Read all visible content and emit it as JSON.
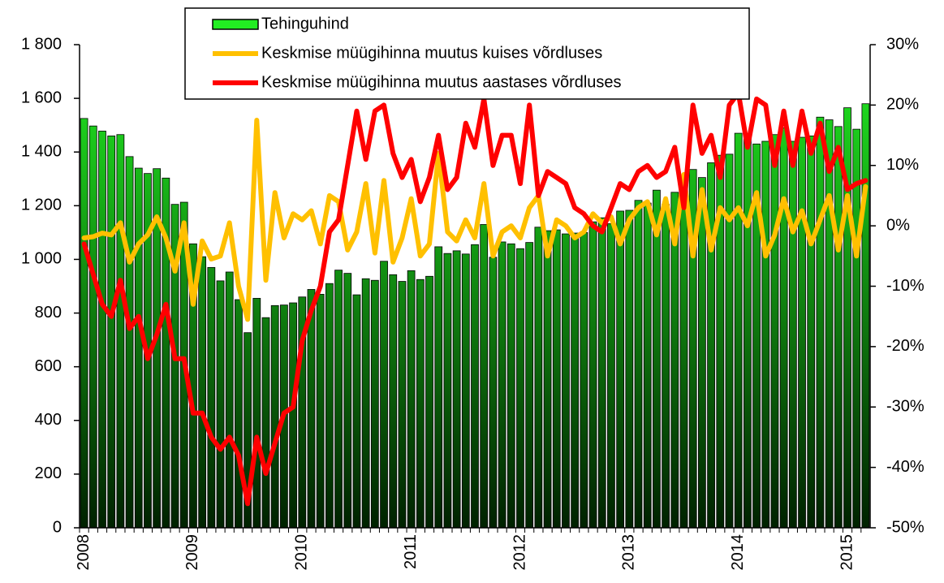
{
  "chart_data": {
    "type": "bar",
    "categories": [
      "2008",
      null,
      null,
      null,
      null,
      null,
      null,
      null,
      null,
      null,
      null,
      null,
      "2009",
      null,
      null,
      null,
      null,
      null,
      null,
      null,
      null,
      null,
      null,
      null,
      "2010",
      null,
      null,
      null,
      null,
      null,
      null,
      null,
      null,
      null,
      null,
      null,
      "2011",
      null,
      null,
      null,
      null,
      null,
      null,
      null,
      null,
      null,
      null,
      null,
      "2012",
      null,
      null,
      null,
      null,
      null,
      null,
      null,
      null,
      null,
      null,
      null,
      "2013",
      null,
      null,
      null,
      null,
      null,
      null,
      null,
      null,
      null,
      null,
      null,
      "2014",
      null,
      null,
      null,
      null,
      null,
      null,
      null,
      null,
      null,
      null,
      null,
      "2015",
      null,
      null
    ],
    "series": [
      {
        "name": "Tehinguhind",
        "type": "bar",
        "color": "#22ee22",
        "values": [
          1525,
          1497,
          1478,
          1460,
          1465,
          1383,
          1340,
          1320,
          1338,
          1303,
          1205,
          1213,
          1058,
          1010,
          970,
          920,
          953,
          850,
          727,
          855,
          783,
          828,
          830,
          838,
          860,
          888,
          870,
          910,
          960,
          948,
          868,
          928,
          922,
          993,
          943,
          918,
          958,
          925,
          937,
          1047,
          1022,
          1032,
          1020,
          1055,
          1130,
          1008,
          1065,
          1058,
          1040,
          1063,
          1120,
          1107,
          1110,
          1095,
          1098,
          1100,
          1140,
          1155,
          1133,
          1180,
          1183,
          1220,
          1210,
          1258,
          1205,
          1250,
          1260,
          1335,
          1305,
          1360,
          1388,
          1392,
          1470,
          1452,
          1430,
          1440,
          1465,
          1490,
          1440,
          1455,
          1460,
          1530,
          1520,
          1495,
          1565,
          1485,
          1580
        ]
      },
      {
        "name": "Keskmise müügihinna muutus kuises võrdluses",
        "type": "line",
        "axis": "y2",
        "color": "#ffc000",
        "values": [
          -2,
          -1.8,
          -1.2,
          -1.5,
          0.5,
          -6,
          -3,
          -1.5,
          1.5,
          -2,
          -7.5,
          0.5,
          -13,
          -2.5,
          -5.5,
          -5,
          0.5,
          -10,
          -15.5,
          17.5,
          -9,
          5.5,
          -2,
          2,
          1,
          2.5,
          -3,
          5,
          4,
          -4,
          -1,
          7,
          -4.5,
          7.5,
          -6,
          -2,
          4.5,
          -5,
          -3,
          12,
          -1,
          -2.5,
          1,
          -2,
          7,
          -5,
          -1,
          0,
          -2,
          3,
          5,
          -5,
          1,
          0,
          -2,
          -1,
          2,
          0.5,
          1.5,
          -3,
          1,
          3,
          4,
          -1.5,
          4.5,
          -3,
          8.5,
          -5,
          6,
          -4,
          3,
          1,
          3,
          0,
          5.5,
          -5,
          -1.5,
          4.5,
          -1,
          2.5,
          -3,
          1,
          5,
          -4,
          5,
          -5,
          6.5
        ]
      },
      {
        "name": "Keskmise müügihinna muutus aastases võrdluses",
        "type": "line",
        "axis": "y2",
        "color": "#ff0000",
        "values": [
          -3,
          -8,
          -13,
          -15,
          -9,
          -17,
          -15,
          -22,
          -18,
          -13,
          -22,
          -22,
          -31,
          -31,
          -35,
          -37,
          -35,
          -38,
          -46,
          -35,
          -41,
          -36,
          -31,
          -30,
          -19,
          -14,
          -10,
          -1,
          1,
          10,
          19,
          11,
          19,
          20,
          12,
          8,
          11,
          4,
          8,
          15,
          6,
          8,
          17,
          13,
          21,
          10,
          15,
          15,
          7,
          20,
          5,
          9,
          8,
          7,
          3,
          2,
          0,
          -1,
          3,
          7,
          6,
          9,
          10,
          8,
          9,
          13,
          3,
          20,
          12,
          15,
          8,
          20,
          22,
          13,
          21,
          20,
          10,
          19,
          10,
          19,
          12,
          17,
          9,
          13,
          6,
          7,
          7.5
        ]
      }
    ],
    "ylim": [
      0,
      1800
    ],
    "yticks": [
      0,
      200,
      400,
      600,
      800,
      {
        "value": 1000,
        "label": "1 000"
      },
      {
        "value": 1200,
        "label": "1 200"
      },
      {
        "value": 1400,
        "label": "1 400"
      },
      {
        "value": 1600,
        "label": "1 600"
      },
      {
        "value": 1800,
        "label": "1 800"
      }
    ],
    "y2lim": [
      -50,
      30
    ],
    "y2ticks": [
      {
        "value": -50,
        "label": "-50%"
      },
      {
        "value": -40,
        "label": "-40%"
      },
      {
        "value": -30,
        "label": "-30%"
      },
      {
        "value": -20,
        "label": "-20%"
      },
      {
        "value": -10,
        "label": "-10%"
      },
      {
        "value": 0,
        "label": "0%"
      },
      {
        "value": 10,
        "label": "10%"
      },
      {
        "value": 20,
        "label": "20%"
      },
      {
        "value": 30,
        "label": "30%"
      }
    ],
    "grid": false,
    "legend": "top"
  }
}
